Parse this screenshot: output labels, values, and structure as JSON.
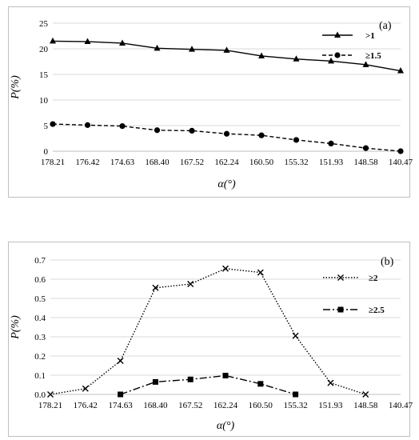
{
  "chart_data": [
    {
      "id": "a",
      "type": "line",
      "panel_label": "(a)",
      "ylabel": "P(%)",
      "xlabel": "α(°)",
      "categories": [
        "178.21",
        "176.42",
        "174.63",
        "168.40",
        "167.52",
        "162.24",
        "160.50",
        "155.32",
        "151.93",
        "148.58",
        "140.47"
      ],
      "yticks": [
        "0",
        "5",
        "10",
        "15",
        "20",
        "25"
      ],
      "ylim": [
        0,
        25
      ],
      "grid": true,
      "legend_position": "top-right",
      "series": [
        {
          "name": ">1",
          "marker": "triangle",
          "dash": "solid",
          "values": [
            21.5,
            21.4,
            21.1,
            20.1,
            19.9,
            19.7,
            18.6,
            18.0,
            17.6,
            16.9,
            15.7
          ]
        },
        {
          "name": "≥1.5",
          "marker": "circle",
          "dash": "dashed",
          "values": [
            5.3,
            5.1,
            4.9,
            4.1,
            4.0,
            3.4,
            3.1,
            2.2,
            1.5,
            0.6,
            0.0
          ]
        }
      ]
    },
    {
      "id": "b",
      "type": "line",
      "panel_label": "(b)",
      "ylabel": "P(%)",
      "xlabel": "α(°)",
      "categories": [
        "178.21",
        "176.42",
        "174.63",
        "168.40",
        "167.52",
        "162.24",
        "160.50",
        "155.32",
        "151.93",
        "148.58",
        "140.47"
      ],
      "yticks": [
        "0.0",
        "0.1",
        "0.2",
        "0.3",
        "0.4",
        "0.5",
        "0.6",
        "0.7"
      ],
      "ylim": [
        0,
        0.7
      ],
      "grid": true,
      "legend_position": "top-right",
      "series": [
        {
          "name": "≥2",
          "marker": "x",
          "dash": "dotted",
          "values": [
            0.0,
            0.03,
            0.175,
            0.555,
            0.575,
            0.655,
            0.635,
            0.305,
            0.06,
            0.0,
            null
          ]
        },
        {
          "name": "≥2.5",
          "marker": "square",
          "dash": "dashdot",
          "values": [
            null,
            null,
            0.0,
            0.065,
            0.078,
            0.098,
            0.055,
            0.0,
            null,
            null,
            null
          ]
        }
      ]
    }
  ]
}
